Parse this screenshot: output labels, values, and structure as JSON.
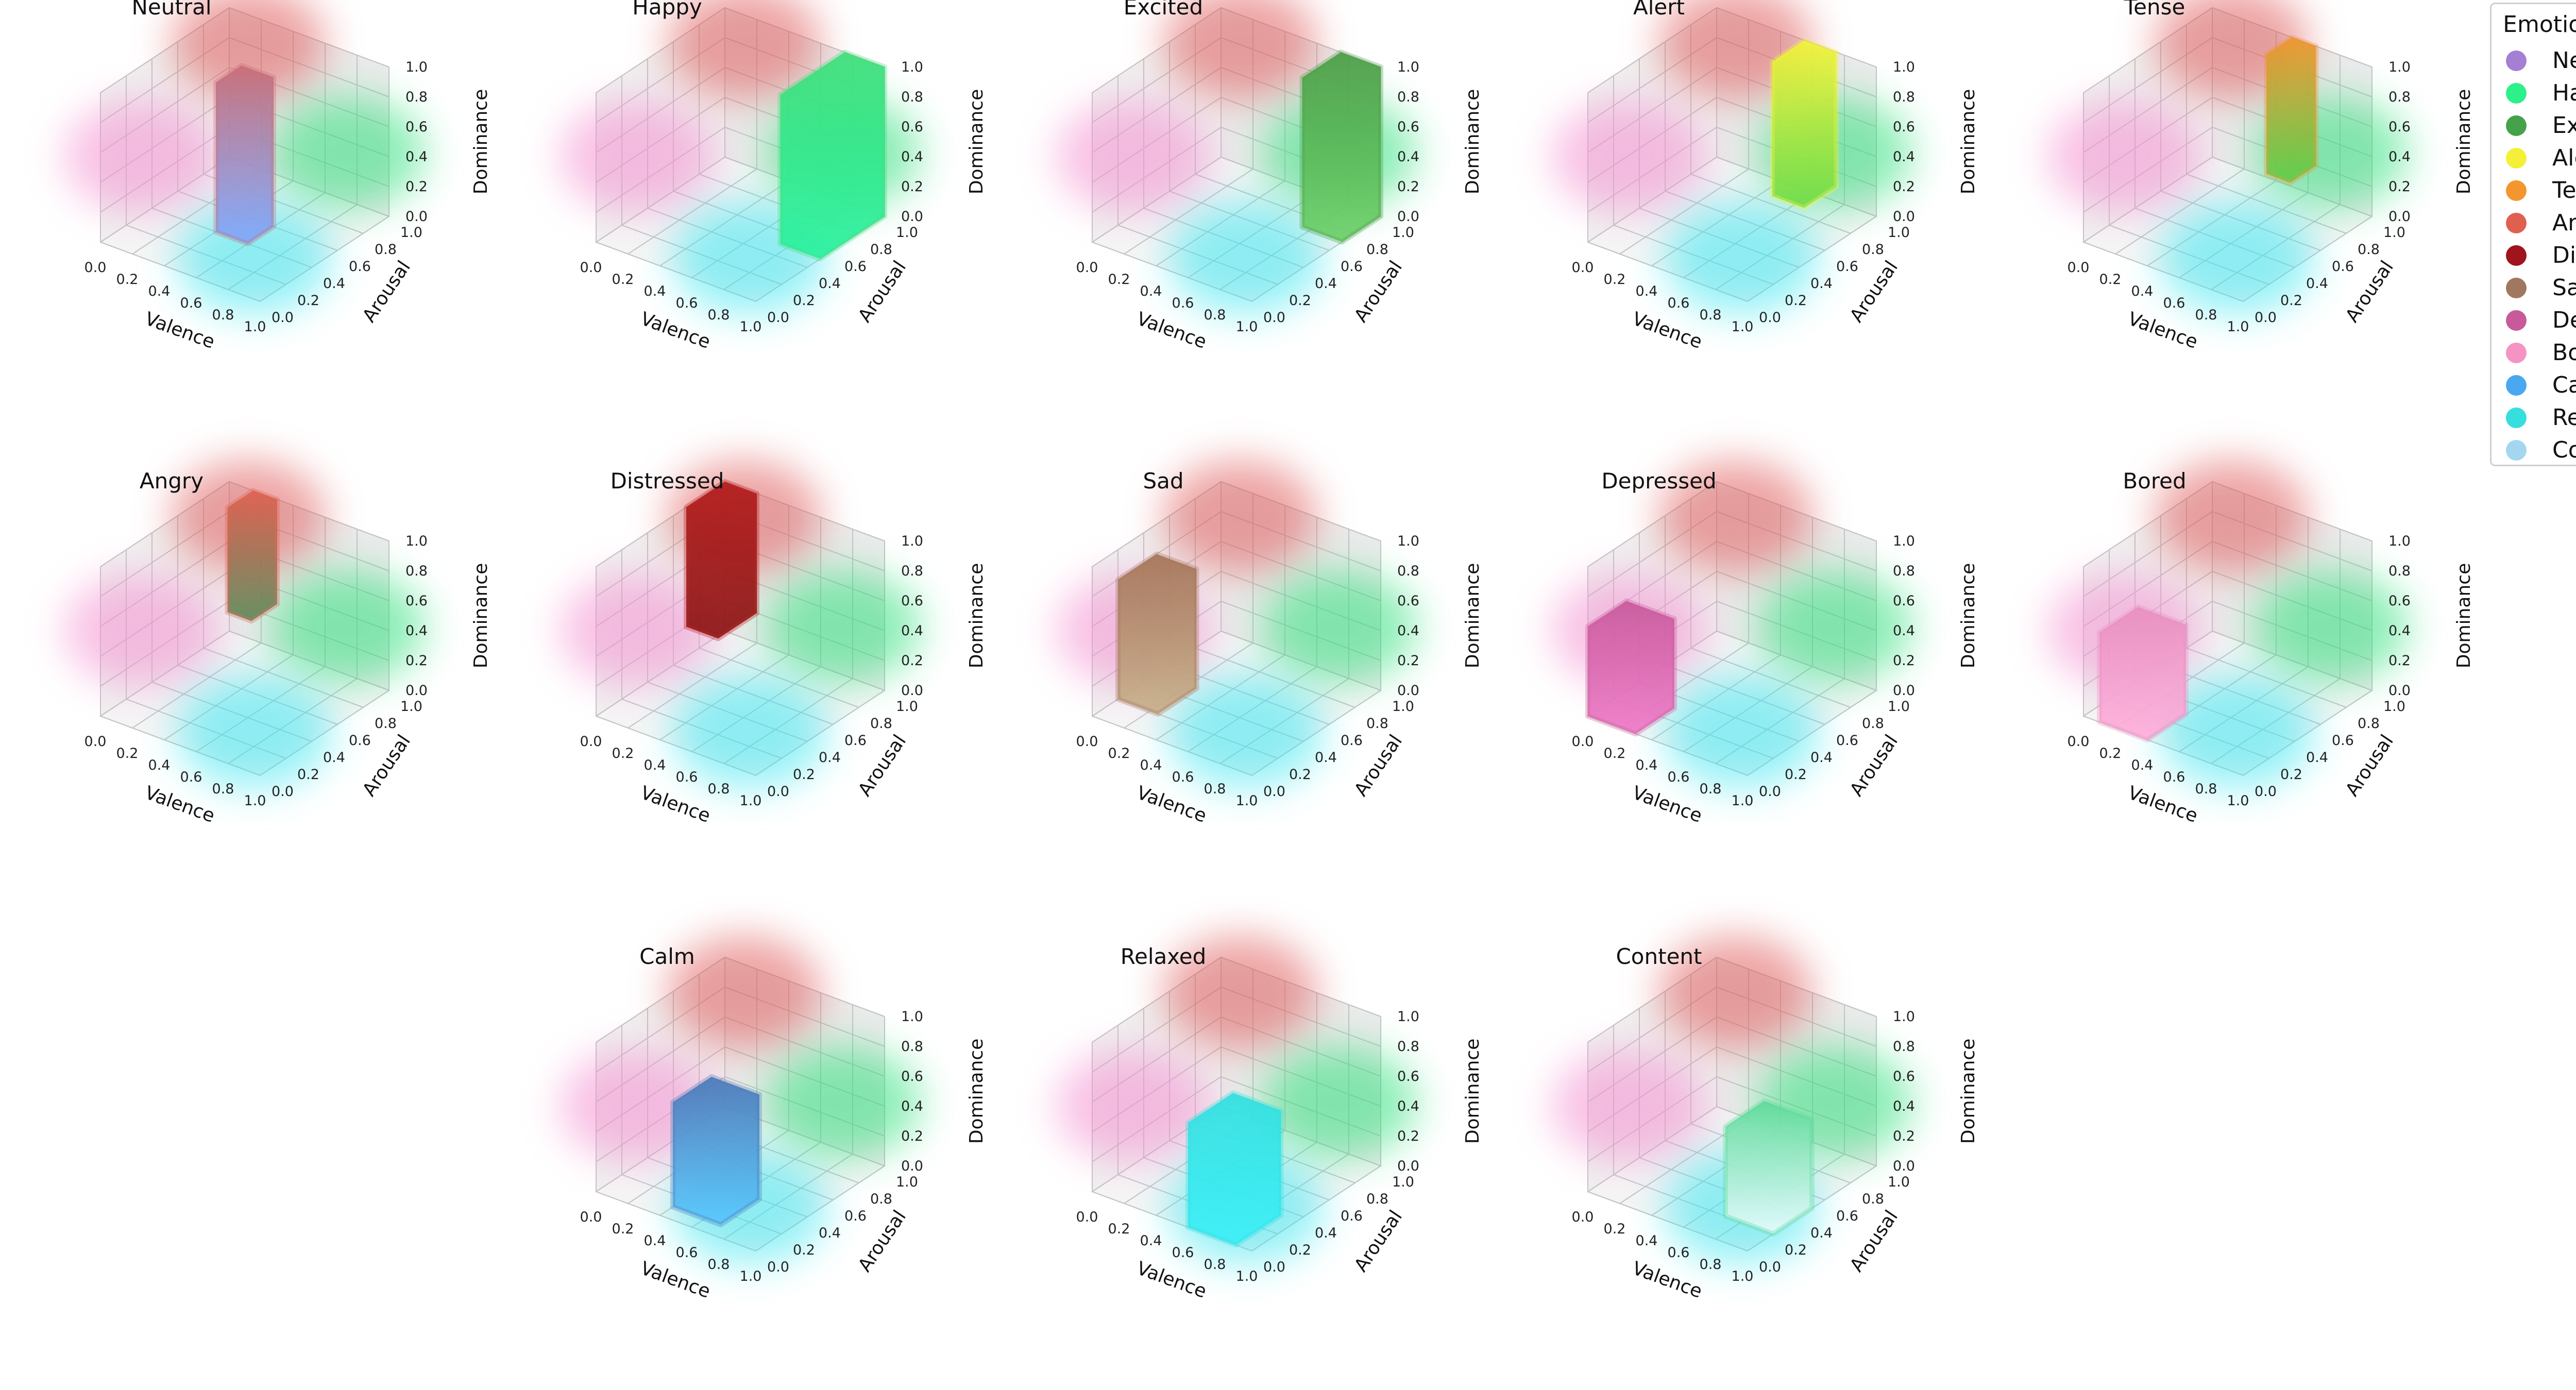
{
  "chart_data": {
    "type": "scatter",
    "title": "",
    "axes_common": {
      "xlabel": "Valence",
      "ylabel": "Arousal",
      "zlabel": "Dominance",
      "xlim": [
        0,
        1
      ],
      "ylim": [
        0,
        1
      ],
      "zlim": [
        0,
        1
      ],
      "ticks": [
        "0.0",
        "0.2",
        "0.4",
        "0.6",
        "0.8",
        "1.0"
      ],
      "grid": true
    },
    "background_regions": [
      {
        "name": "pink",
        "color": "#f48fd0",
        "valence": 0.1,
        "arousal": 0.2,
        "dominance": 0.5
      },
      {
        "name": "red",
        "color": "#e05a5a",
        "valence": 0.2,
        "arousal": 0.9,
        "dominance": 0.9
      },
      {
        "name": "green",
        "color": "#2ee07a",
        "valence": 0.9,
        "arousal": 0.8,
        "dominance": 0.5
      },
      {
        "name": "cyan",
        "color": "#3be6f0",
        "valence": 0.8,
        "arousal": 0.2,
        "dominance": 0.1
      }
    ],
    "panels": [
      {
        "title": "Neutral",
        "valence": [
          0.4,
          0.6
        ],
        "arousal": [
          0.4,
          0.6
        ],
        "dominance": [
          0.0,
          1.0
        ],
        "color_top": "#c86e78",
        "color_bottom": "#7fa8ff"
      },
      {
        "title": "Happy",
        "valence": [
          0.75,
          1.0
        ],
        "arousal": [
          0.5,
          1.0
        ],
        "dominance": [
          0.0,
          1.0
        ],
        "color_top": "#3ee07a",
        "color_bottom": "#2af2a0"
      },
      {
        "title": "Excited",
        "valence": [
          0.75,
          1.0
        ],
        "arousal": [
          0.7,
          1.0
        ],
        "dominance": [
          0.0,
          1.0
        ],
        "color_top": "#4a9e46",
        "color_bottom": "#6cd26a"
      },
      {
        "title": "Alert",
        "valence": [
          0.55,
          0.75
        ],
        "arousal": [
          0.75,
          1.0
        ],
        "dominance": [
          0.1,
          1.0
        ],
        "color_top": "#f4f438",
        "color_bottom": "#6cdc48"
      },
      {
        "title": "Tense",
        "valence": [
          0.5,
          0.65
        ],
        "arousal": [
          0.8,
          1.0
        ],
        "dominance": [
          0.2,
          1.0
        ],
        "color_top": "#f0962e",
        "color_bottom": "#5ccf4a"
      },
      {
        "title": "Angry",
        "valence": [
          0.15,
          0.3
        ],
        "arousal": [
          0.8,
          1.0
        ],
        "dominance": [
          0.3,
          1.0
        ],
        "color_top": "#e06050",
        "color_bottom": "#5f8a5a"
      },
      {
        "title": "Distressed",
        "valence": [
          0.0,
          0.2
        ],
        "arousal": [
          0.7,
          1.0
        ],
        "dominance": [
          0.2,
          1.0
        ],
        "color_top": "#b41c1c",
        "color_bottom": "#8c1414"
      },
      {
        "title": "Sad",
        "valence": [
          0.0,
          0.25
        ],
        "arousal": [
          0.2,
          0.5
        ],
        "dominance": [
          0.0,
          0.8
        ],
        "color_top": "#a57458",
        "color_bottom": "#c8b08a"
      },
      {
        "title": "Depressed",
        "valence": [
          0.0,
          0.3
        ],
        "arousal": [
          0.0,
          0.3
        ],
        "dominance": [
          0.0,
          0.6
        ],
        "color_top": "#c85a9c",
        "color_bottom": "#f07ac8"
      },
      {
        "title": "Bored",
        "valence": [
          0.1,
          0.4
        ],
        "arousal": [
          0.0,
          0.3
        ],
        "dominance": [
          0.0,
          0.6
        ],
        "color_top": "#e890c0",
        "color_bottom": "#ffb0dc"
      },
      {
        "title": "Calm",
        "valence": [
          0.4,
          0.7
        ],
        "arousal": [
          0.1,
          0.4
        ],
        "dominance": [
          0.0,
          0.7
        ],
        "color_top": "#4a78b8",
        "color_bottom": "#58c8ff"
      },
      {
        "title": "Relaxed",
        "valence": [
          0.6,
          0.9
        ],
        "arousal": [
          0.0,
          0.35
        ],
        "dominance": [
          0.0,
          0.7
        ],
        "color_top": "#30e0e0",
        "color_bottom": "#3cf0f8"
      },
      {
        "title": "Content",
        "valence": [
          0.7,
          1.0
        ],
        "arousal": [
          0.2,
          0.5
        ],
        "dominance": [
          0.0,
          0.6
        ],
        "color_top": "#5edb9a",
        "color_bottom": "#e8fbff"
      }
    ],
    "legend": {
      "title": "Emotion Colors",
      "placement": "top-right",
      "entries": [
        {
          "label": "Neutral",
          "color": "#a57fd4"
        },
        {
          "label": "Happy",
          "color": "#2cf08a"
        },
        {
          "label": "Excited",
          "color": "#46a24a"
        },
        {
          "label": "Alert",
          "color": "#f4f038"
        },
        {
          "label": "Tense",
          "color": "#f4962e"
        },
        {
          "label": "Angry",
          "color": "#e06050"
        },
        {
          "label": "Distressed",
          "color": "#a0141c"
        },
        {
          "label": "Sad",
          "color": "#a07860"
        },
        {
          "label": "Depressed",
          "color": "#c85a9a"
        },
        {
          "label": "Bored",
          "color": "#f594c4"
        },
        {
          "label": "Calm",
          "color": "#4aa8f0"
        },
        {
          "label": "Relaxed",
          "color": "#36dede"
        },
        {
          "label": "Content",
          "color": "#a4d6f0"
        }
      ]
    }
  }
}
